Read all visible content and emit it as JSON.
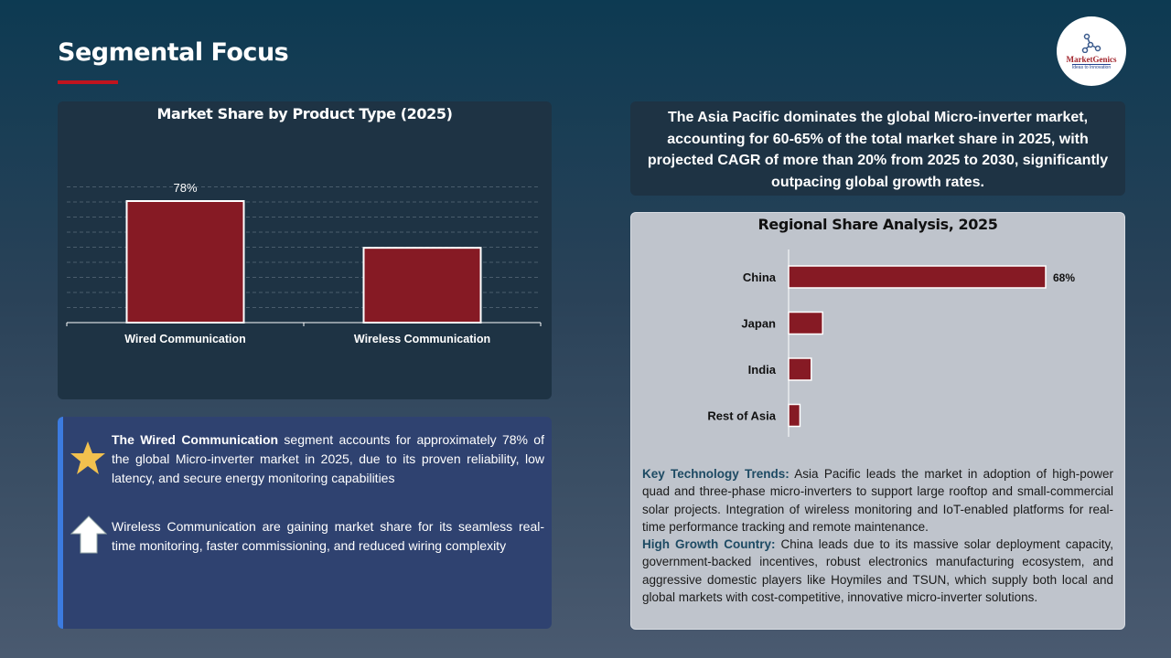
{
  "header": {
    "title": "Segmental Focus",
    "logo_text": "MarketGenics",
    "logo_tagline": "Ideas to Innovation"
  },
  "chart_data": [
    {
      "type": "bar",
      "title": "Market Share by Product Type (2025)",
      "categories": [
        "Wired Communication",
        "Wireless Communication"
      ],
      "values": [
        78,
        48
      ],
      "data_labels": [
        "78%",
        ""
      ],
      "ylim": [
        0,
        90
      ],
      "grid": true,
      "bar_color": "#861a24"
    },
    {
      "type": "bar",
      "orientation": "horizontal",
      "title": "Regional Share Analysis, 2025",
      "categories": [
        "China",
        "Japan",
        "India",
        "Rest of Asia"
      ],
      "values": [
        68,
        9,
        6,
        3
      ],
      "data_labels": [
        "68%",
        "",
        "",
        ""
      ],
      "grid": false,
      "bar_color": "#861a24"
    }
  ],
  "insights": [
    {
      "icon": "star-icon",
      "bold": "The Wired Communication",
      "text": " segment accounts for approximately 78% of the global Micro-inverter  market in 2025, due to its proven reliability, low latency, and secure energy monitoring capabilities"
    },
    {
      "icon": "arrow-up-icon",
      "bold": "",
      "text": "Wireless Communication are gaining market share for its seamless real-time monitoring, faster commissioning, and reduced wiring complexity"
    }
  ],
  "asia_summary": "The Asia Pacific dominates the global Micro-inverter  market, accounting for 60-65% of the total market share in 2025, with projected CAGR of more than 20% from 2025 to 2030, significantly outpacing global growth rates.",
  "region_notes": {
    "trends_label": "Key Technology Trends:",
    "trends_text": " Asia Pacific leads the market in adoption of high-power quad and three-phase micro-inverters to support large rooftop and small-commercial solar projects. Integration of wireless monitoring and IoT-enabled platforms for real-time performance tracking and remote maintenance.",
    "growth_label": "High Growth Country:",
    "growth_text": " China leads due to its massive solar deployment capacity, government-backed incentives, robust electronics manufacturing ecosystem, and aggressive domestic players like Hoymiles and TSUN, which supply both local and global markets with cost-competitive, innovative micro-inverter solutions."
  }
}
